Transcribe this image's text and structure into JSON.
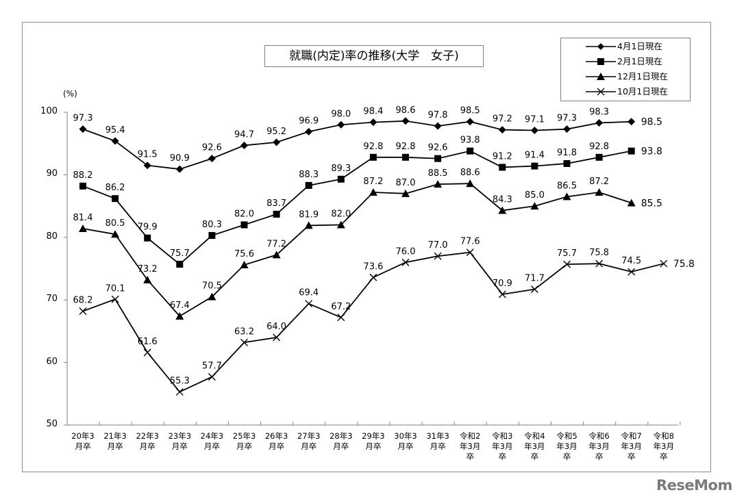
{
  "chart_data": {
    "type": "line",
    "title": "就職(内定)率の推移(大学　女子)",
    "ylabel": "(%)",
    "xlabel": "",
    "ylim": [
      50,
      100
    ],
    "yticks": [
      50,
      60,
      70,
      80,
      90,
      100
    ],
    "grid": false,
    "legend_position": "top-right",
    "categories": [
      "20年3月卒",
      "21年3月卒",
      "22年3月卒",
      "23年3月卒",
      "24年3月卒",
      "25年3月卒",
      "26年3月卒",
      "27年3月卒",
      "28年3月卒",
      "29年3月卒",
      "30年3月卒",
      "31年3月卒",
      "令和2年3月卒",
      "令和3年3月卒",
      "令和4年3月卒",
      "令和5年3月卒",
      "令和6年3月卒",
      "令和7年3月卒",
      "令和8年3月卒"
    ],
    "series": [
      {
        "name": "4月1日現在",
        "marker": "diamond",
        "values": [
          97.3,
          95.4,
          91.5,
          90.9,
          92.6,
          94.7,
          95.2,
          96.9,
          98.0,
          98.4,
          98.6,
          97.8,
          98.5,
          97.2,
          97.1,
          97.3,
          98.3,
          98.5,
          null
        ]
      },
      {
        "name": "2月1日現在",
        "marker": "square",
        "values": [
          88.2,
          86.2,
          79.9,
          75.7,
          80.3,
          82.0,
          83.7,
          88.3,
          89.3,
          92.8,
          92.8,
          92.6,
          93.8,
          91.2,
          91.4,
          91.8,
          92.8,
          93.8,
          null
        ]
      },
      {
        "name": "12月1日現在",
        "marker": "triangle",
        "values": [
          81.4,
          80.5,
          73.2,
          67.4,
          70.5,
          75.6,
          77.2,
          81.9,
          82.0,
          87.2,
          87.0,
          88.5,
          88.6,
          84.3,
          85.0,
          86.5,
          87.2,
          85.5,
          null
        ]
      },
      {
        "name": "10月1日現在",
        "marker": "x",
        "values": [
          68.2,
          70.1,
          61.6,
          55.3,
          57.7,
          63.2,
          64.0,
          69.4,
          67.2,
          73.6,
          76.0,
          77.0,
          77.6,
          70.9,
          71.7,
          75.7,
          75.8,
          74.5,
          75.8
        ]
      }
    ]
  },
  "x_labels": [
    [
      "20年3",
      "月卒"
    ],
    [
      "21年3",
      "月卒"
    ],
    [
      "22年3",
      "月卒"
    ],
    [
      "23年3",
      "月卒"
    ],
    [
      "24年3",
      "月卒"
    ],
    [
      "25年3",
      "月卒"
    ],
    [
      "26年3",
      "月卒"
    ],
    [
      "27年3",
      "月卒"
    ],
    [
      "28年3",
      "月卒"
    ],
    [
      "29年3",
      "月卒"
    ],
    [
      "30年3",
      "月卒"
    ],
    [
      "31年3",
      "月卒"
    ],
    [
      "令和2",
      "年3月",
      "卒"
    ],
    [
      "令和3",
      "年3月",
      "卒"
    ],
    [
      "令和4",
      "年3月",
      "卒"
    ],
    [
      "令和5",
      "年3月",
      "卒"
    ],
    [
      "令和6",
      "年3月",
      "卒"
    ],
    [
      "令和7",
      "年3月",
      "卒"
    ],
    [
      "令和8",
      "年3月",
      "卒"
    ]
  ],
  "legend": {
    "items": [
      "4月1日現在",
      "2月1日現在",
      "12月1日現在",
      "10月1日現在"
    ]
  },
  "watermark": "ReseMom",
  "colors": {
    "line": "#000000",
    "axis": "#808080",
    "frame": "#8a8a8a",
    "watermark": "#7a7a7a"
  }
}
